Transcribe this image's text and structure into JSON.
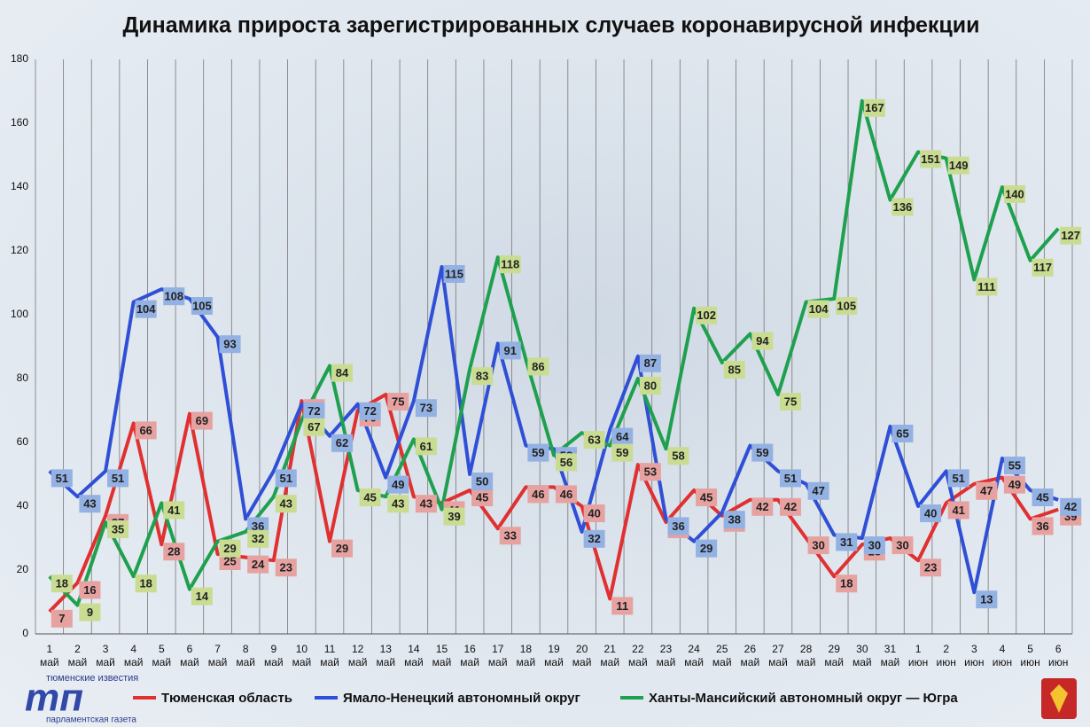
{
  "chart_data": {
    "type": "line",
    "title": "Динамика прироста зарегистрированных случаев коронавирусной инфекции",
    "categories": [
      "1 май",
      "2 май",
      "3 май",
      "4 май",
      "5 май",
      "6 май",
      "7 май",
      "8 май",
      "9 май",
      "10 май",
      "11 май",
      "12 май",
      "13 май",
      "14 май",
      "15 май",
      "16 май",
      "17 май",
      "18 май",
      "19 май",
      "20 май",
      "21 май",
      "22 май",
      "23 май",
      "24 май",
      "25 май",
      "26 май",
      "27 май",
      "28 май",
      "29 май",
      "30 май",
      "31 май",
      "1 июн",
      "2 июн",
      "3 июн",
      "4 июн",
      "5 июн",
      "6 июн"
    ],
    "series": [
      {
        "name": "Тюменская область",
        "color": "#e03030",
        "label_color": "#e6a2a0",
        "values": [
          7,
          16,
          37,
          66,
          28,
          69,
          25,
          24,
          23,
          73,
          29,
          70,
          75,
          43,
          41,
          45,
          33,
          46,
          46,
          40,
          11,
          53,
          35,
          45,
          37,
          42,
          42,
          30,
          18,
          28,
          30,
          23,
          41,
          47,
          49,
          36,
          39
        ]
      },
      {
        "name": "Ямало-Ненецкий автономный округ",
        "color": "#2f4fd6",
        "label_color": "#93b1e2",
        "values": [
          51,
          43,
          51,
          104,
          108,
          105,
          93,
          36,
          51,
          72,
          62,
          72,
          49,
          73,
          115,
          50,
          91,
          59,
          58,
          32,
          64,
          87,
          36,
          29,
          38,
          59,
          51,
          47,
          31,
          30,
          65,
          40,
          51,
          13,
          55,
          45,
          42
        ]
      },
      {
        "name": "Ханты-Мансийский автономный округ — Югра",
        "color": "#1ea04e",
        "label_color": "#c9dc92",
        "values": [
          18,
          9,
          35,
          18,
          41,
          14,
          29,
          32,
          43,
          67,
          84,
          45,
          43,
          61,
          39,
          83,
          118,
          86,
          56,
          63,
          59,
          80,
          58,
          102,
          85,
          94,
          75,
          104,
          105,
          167,
          136,
          151,
          149,
          111,
          140,
          117,
          127
        ]
      }
    ],
    "ylim": [
      0,
      180
    ],
    "yticks": [
      0,
      20,
      40,
      60,
      80,
      100,
      120,
      140,
      160,
      180
    ],
    "grid": true,
    "legend": "bottom",
    "logo": {
      "top": "тюменские известия",
      "mark": "тп",
      "bottom": "парламентская газета"
    }
  }
}
